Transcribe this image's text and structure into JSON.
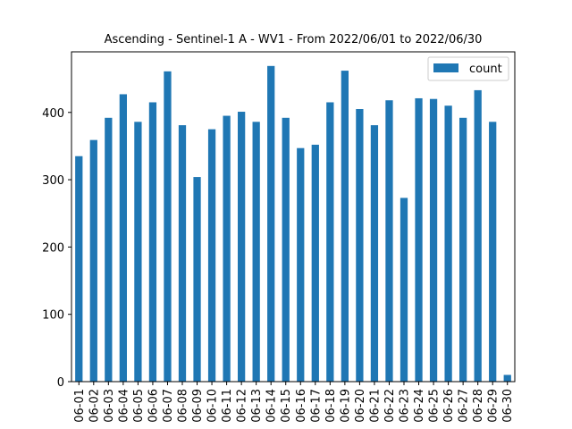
{
  "chart_data": {
    "type": "bar",
    "title": "Ascending - Sentinel-1 A - WV1 - From 2022/06/01 to 2022/06/30",
    "xlabel": "",
    "ylabel": "",
    "categories": [
      "06-01",
      "06-02",
      "06-03",
      "06-04",
      "06-05",
      "06-06",
      "06-07",
      "06-08",
      "06-09",
      "06-10",
      "06-11",
      "06-12",
      "06-13",
      "06-14",
      "06-15",
      "06-16",
      "06-17",
      "06-18",
      "06-19",
      "06-20",
      "06-21",
      "06-22",
      "06-23",
      "06-24",
      "06-25",
      "06-26",
      "06-27",
      "06-28",
      "06-29",
      "06-30"
    ],
    "series": [
      {
        "name": "count",
        "color": "#1f77b4",
        "values": [
          335,
          359,
          392,
          427,
          386,
          415,
          461,
          381,
          304,
          375,
          395,
          401,
          386,
          469,
          392,
          347,
          352,
          415,
          462,
          405,
          381,
          418,
          273,
          421,
          420,
          410,
          392,
          433,
          386,
          10
        ]
      }
    ],
    "ylim": [
      0,
      490
    ],
    "yticks": [
      0,
      100,
      200,
      300,
      400
    ],
    "grid": false,
    "legend": "top-right"
  }
}
